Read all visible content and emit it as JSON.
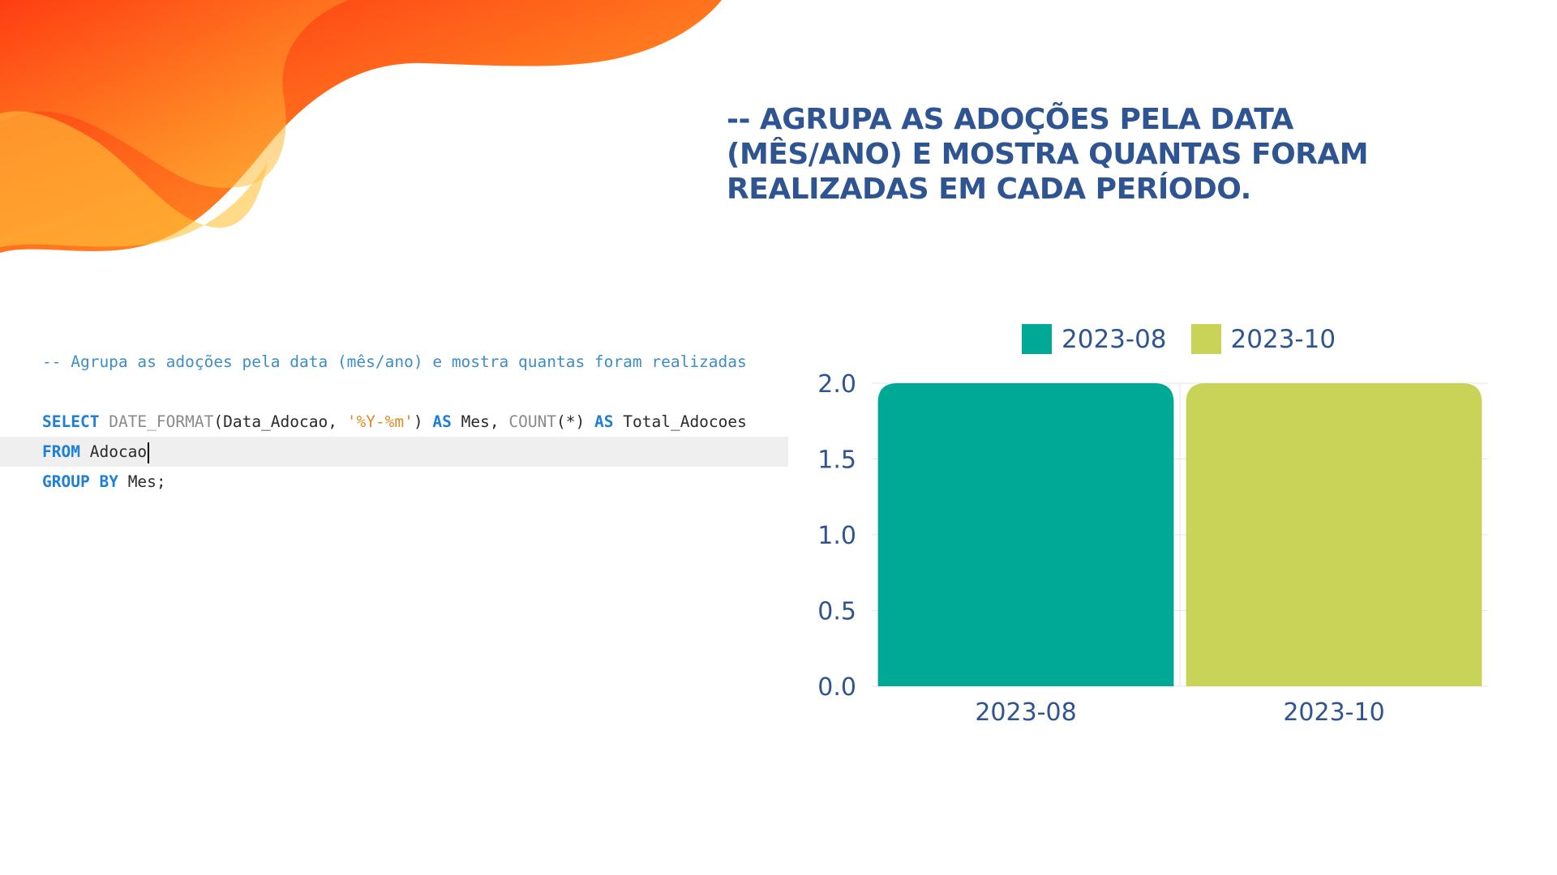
{
  "heading": {
    "lines": [
      "-- AGRUPA AS ADOÇÕES PELA DATA",
      "(MÊS/ANO) E MOSTRA QUANTAS FORAM",
      "REALIZADAS EM CADA PERÍODO."
    ]
  },
  "code": {
    "comment": "-- Agrupa as adoções pela data (mês/ano) e mostra quantas foram realizadas",
    "line1": {
      "kw_select": "SELECT",
      "fn_date_format": "DATE_FORMAT",
      "paren_open": "(",
      "arg_data": "Data_Adocao, ",
      "str_format": "'%Y-%m'",
      "paren_close": ")",
      "kw_as1": "AS",
      "alias_mes": "Mes, ",
      "fn_count": "COUNT",
      "count_arg": "(*)",
      "kw_as2": "AS",
      "alias_total": "Total_Adocoes"
    },
    "line2": {
      "kw_from": "FROM",
      "table": "Adocao"
    },
    "line3": {
      "kw_group": "GROUP",
      "kw_by": "BY",
      "rest": "Mes;"
    }
  },
  "chart_data": {
    "type": "bar",
    "categories": [
      "2023-08",
      "2023-10"
    ],
    "series": [
      {
        "name": "2023-08",
        "values": [
          2,
          null
        ],
        "color": "#00a896"
      },
      {
        "name": "2023-10",
        "values": [
          null,
          2
        ],
        "color": "#c9d357"
      }
    ],
    "values": [
      2,
      2
    ],
    "ylim": [
      0,
      2
    ],
    "yticks": [
      "0.0",
      "0.5",
      "1.0",
      "1.5",
      "2.0"
    ],
    "legend": "top",
    "grid": true
  },
  "colors": {
    "heading": "#2e5591",
    "axis_text": "#2e5591",
    "bar1": "#00a896",
    "bar2": "#c9d357"
  }
}
